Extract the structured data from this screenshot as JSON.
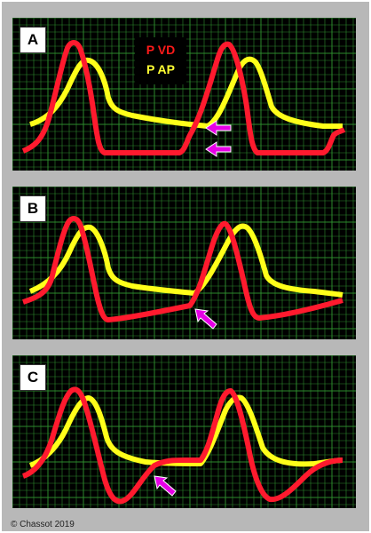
{
  "panels": [
    {
      "label": "A"
    },
    {
      "label": "B"
    },
    {
      "label": "C"
    }
  ],
  "legend": {
    "rvp": "P VD",
    "pap": "P AP"
  },
  "colors": {
    "rvp": "#ff1a2e",
    "pap": "#ffff1a",
    "arrow": "#e600e6",
    "grid": "#2d8a2d",
    "background": "#000000"
  },
  "copyright": "© Chassot  2019"
}
